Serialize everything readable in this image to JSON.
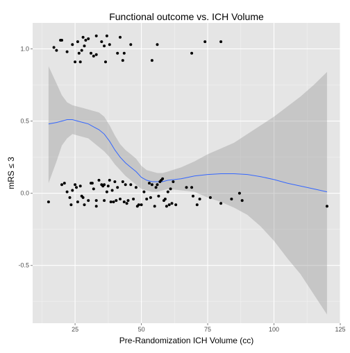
{
  "chart_data": {
    "type": "scatter",
    "title": "Functional outcome vs. ICH Volume",
    "xlabel": "Pre-Randomization ICH Volume (cc)",
    "ylabel": "mRS ≤ 3",
    "xlim": [
      9,
      125
    ],
    "ylim": [
      -0.9,
      1.18
    ],
    "x_ticks": [
      25,
      50,
      75,
      100,
      125
    ],
    "x_tick_labels": [
      "25",
      "50",
      "75",
      "100",
      "125"
    ],
    "y_ticks": [
      -0.5,
      0.0,
      0.5,
      1.0
    ],
    "y_tick_labels": [
      "-0.5",
      "0.0",
      "0.5",
      "1.0"
    ],
    "grid": true,
    "colors": {
      "panel_background": "#e5e5e5",
      "grid_major": "#ffffff",
      "grid_minor": "#f2f2f2",
      "points": "#000000",
      "smooth_line": "#3366ff",
      "confidence_band": "#999999"
    },
    "points": [
      [
        17,
        1.01
      ],
      [
        18,
        0.99
      ],
      [
        19.5,
        1.06
      ],
      [
        20,
        1.06
      ],
      [
        22,
        0.98
      ],
      [
        24,
        1.03
      ],
      [
        25,
        0.91
      ],
      [
        26,
        1.05
      ],
      [
        26.5,
        0.97
      ],
      [
        27,
        0.91
      ],
      [
        27.5,
        0.99
      ],
      [
        28,
        1.08
      ],
      [
        28.5,
        1.02
      ],
      [
        29,
        1.06
      ],
      [
        30,
        1.07
      ],
      [
        31,
        0.97
      ],
      [
        32,
        0.95
      ],
      [
        33,
        1.09
      ],
      [
        33,
        0.96
      ],
      [
        35,
        1.05
      ],
      [
        36,
        1.02
      ],
      [
        36.5,
        0.91
      ],
      [
        37,
        1.09
      ],
      [
        38,
        1.03
      ],
      [
        41,
        0.97
      ],
      [
        42,
        1.08
      ],
      [
        43,
        0.92
      ],
      [
        43.5,
        0.97
      ],
      [
        46,
        1.03
      ],
      [
        54,
        0.92
      ],
      [
        56,
        1.03
      ],
      [
        69,
        0.97
      ],
      [
        74,
        1.05
      ],
      [
        80,
        1.05
      ],
      [
        15,
        -0.06
      ],
      [
        20,
        0.06
      ],
      [
        21,
        0.07
      ],
      [
        22,
        0.01
      ],
      [
        23,
        -0.03
      ],
      [
        23.5,
        -0.08
      ],
      [
        24,
        0.02
      ],
      [
        25,
        0.06
      ],
      [
        25.5,
        0.04
      ],
      [
        26,
        -0.06
      ],
      [
        27,
        0.05
      ],
      [
        27.5,
        -0.02
      ],
      [
        28,
        -0.03
      ],
      [
        28.5,
        -0.08
      ],
      [
        30,
        -0.05
      ],
      [
        31,
        0.07
      ],
      [
        31.5,
        0.07
      ],
      [
        32,
        0.03
      ],
      [
        33,
        -0.05
      ],
      [
        33,
        -0.09
      ],
      [
        34,
        0.09
      ],
      [
        35,
        0.06
      ],
      [
        35.5,
        0.05
      ],
      [
        36,
        0.06
      ],
      [
        36,
        -0.05
      ],
      [
        37,
        0.01
      ],
      [
        37.5,
        0.05
      ],
      [
        38,
        0.09
      ],
      [
        38.5,
        -0.06
      ],
      [
        39,
        0.02
      ],
      [
        39.5,
        -0.06
      ],
      [
        40,
        0.08
      ],
      [
        40.5,
        -0.05
      ],
      [
        41,
        0.04
      ],
      [
        42,
        -0.04
      ],
      [
        43,
        0.08
      ],
      [
        43.5,
        -0.06
      ],
      [
        44,
        0.06
      ],
      [
        44.5,
        -0.07
      ],
      [
        45,
        -0.05
      ],
      [
        46,
        0.06
      ],
      [
        47,
        -0.04
      ],
      [
        48,
        0.04
      ],
      [
        48.5,
        -0.09
      ],
      [
        49,
        -0.08
      ],
      [
        50,
        -0.08
      ],
      [
        51,
        0.01
      ],
      [
        52,
        -0.04
      ],
      [
        53,
        0.07
      ],
      [
        53.5,
        -0.03
      ],
      [
        54,
        0.06
      ],
      [
        55,
        -0.09
      ],
      [
        55.5,
        0.04
      ],
      [
        56,
        0.06
      ],
      [
        56.5,
        -0.02
      ],
      [
        57,
        0.08
      ],
      [
        57.5,
        0.09
      ],
      [
        58,
        0.1
      ],
      [
        58.5,
        -0.05
      ],
      [
        59,
        -0.04
      ],
      [
        59.5,
        -0.09
      ],
      [
        60,
        0.01
      ],
      [
        60.5,
        -0.08
      ],
      [
        61,
        0.03
      ],
      [
        61.5,
        -0.07
      ],
      [
        62,
        0.08
      ],
      [
        63,
        -0.08
      ],
      [
        67,
        0.04
      ],
      [
        69,
        0.04
      ],
      [
        69.5,
        -0.02
      ],
      [
        71,
        -0.08
      ],
      [
        72,
        -0.04
      ],
      [
        76,
        -0.03
      ],
      [
        80,
        -0.07
      ],
      [
        84,
        -0.04
      ],
      [
        87,
        0.0
      ],
      [
        88,
        -0.05
      ],
      [
        120,
        -0.09
      ]
    ],
    "smooth": {
      "method": "loess",
      "x": [
        15,
        18,
        20,
        22,
        24,
        26,
        28,
        30,
        32,
        34,
        36,
        38,
        40,
        42,
        44,
        46,
        48,
        50,
        52,
        54,
        56,
        58,
        60,
        65,
        70,
        75,
        80,
        85,
        90,
        95,
        100,
        105,
        110,
        115,
        120
      ],
      "fit": [
        0.48,
        0.49,
        0.5,
        0.51,
        0.51,
        0.5,
        0.49,
        0.48,
        0.46,
        0.44,
        0.41,
        0.36,
        0.3,
        0.25,
        0.21,
        0.18,
        0.15,
        0.11,
        0.09,
        0.08,
        0.08,
        0.08,
        0.09,
        0.1,
        0.12,
        0.13,
        0.135,
        0.135,
        0.13,
        0.115,
        0.095,
        0.07,
        0.05,
        0.03,
        0.01
      ],
      "upper": [
        0.88,
        0.76,
        0.68,
        0.63,
        0.61,
        0.6,
        0.59,
        0.58,
        0.57,
        0.56,
        0.53,
        0.47,
        0.4,
        0.34,
        0.3,
        0.27,
        0.24,
        0.19,
        0.16,
        0.15,
        0.14,
        0.14,
        0.15,
        0.18,
        0.22,
        0.27,
        0.31,
        0.35,
        0.41,
        0.47,
        0.53,
        0.6,
        0.67,
        0.75,
        0.84
      ],
      "lower": [
        0.07,
        0.22,
        0.33,
        0.38,
        0.41,
        0.4,
        0.39,
        0.38,
        0.35,
        0.32,
        0.29,
        0.25,
        0.2,
        0.16,
        0.12,
        0.09,
        0.06,
        0.03,
        0.02,
        0.01,
        0.01,
        0.02,
        0.03,
        0.02,
        0.01,
        -0.03,
        -0.06,
        -0.1,
        -0.15,
        -0.23,
        -0.33,
        -0.45,
        -0.56,
        -0.7,
        -0.84
      ]
    }
  }
}
